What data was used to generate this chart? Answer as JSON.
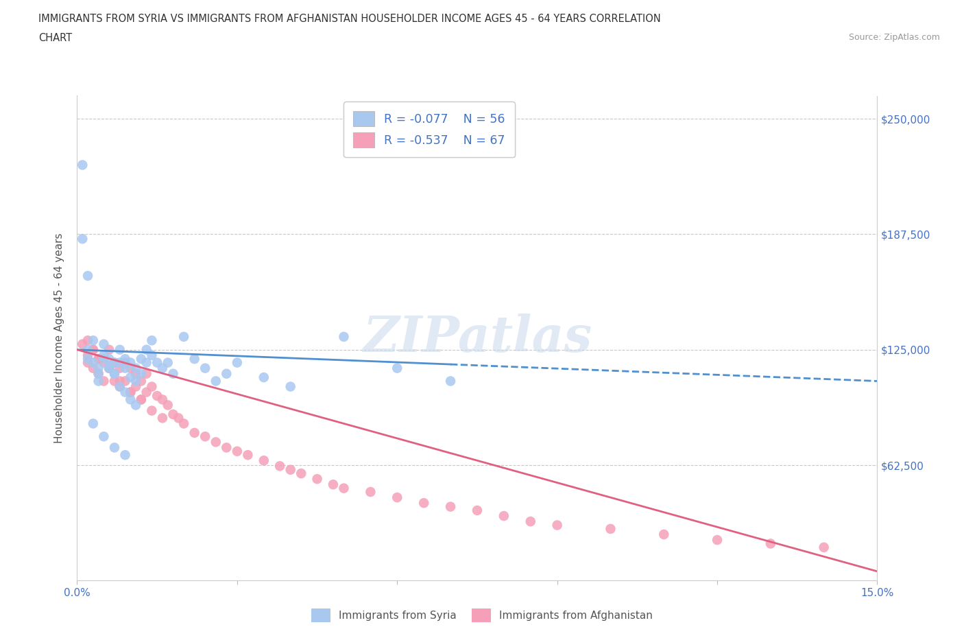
{
  "title_line1": "IMMIGRANTS FROM SYRIA VS IMMIGRANTS FROM AFGHANISTAN HOUSEHOLDER INCOME AGES 45 - 64 YEARS CORRELATION",
  "title_line2": "CHART",
  "source_text": "Source: ZipAtlas.com",
  "ylabel": "Householder Income Ages 45 - 64 years",
  "xlim": [
    0.0,
    0.15
  ],
  "ylim": [
    0,
    262500
  ],
  "yticks": [
    0,
    62500,
    125000,
    187500,
    250000
  ],
  "ytick_labels": [
    "",
    "$62,500",
    "$125,000",
    "$187,500",
    "$250,000"
  ],
  "xticks": [
    0.0,
    0.03,
    0.06,
    0.09,
    0.12,
    0.15
  ],
  "xtick_labels": [
    "0.0%",
    "",
    "",
    "",
    "",
    "15.0%"
  ],
  "grid_color": "#c8c8c8",
  "background_color": "#ffffff",
  "syria_color": "#a8c8f0",
  "afghanistan_color": "#f5a0b8",
  "syria_line_color": "#5090d0",
  "afghanistan_line_color": "#e06080",
  "legend_r_syria": "R = -0.077",
  "legend_n_syria": "N = 56",
  "legend_r_afghanistan": "R = -0.537",
  "legend_n_afghanistan": "N = 67",
  "legend_label_syria": "Immigrants from Syria",
  "legend_label_afghanistan": "Immigrants from Afghanistan",
  "watermark": "ZIPatlas",
  "title_color": "#333333",
  "tick_label_color": "#4472c4",
  "legend_r_color": "#4472c4",
  "axis_label_color": "#555555",
  "syria_x": [
    0.002,
    0.002,
    0.003,
    0.004,
    0.004,
    0.005,
    0.005,
    0.006,
    0.006,
    0.007,
    0.007,
    0.008,
    0.008,
    0.009,
    0.009,
    0.01,
    0.01,
    0.011,
    0.011,
    0.012,
    0.012,
    0.013,
    0.013,
    0.014,
    0.014,
    0.015,
    0.016,
    0.017,
    0.018,
    0.02,
    0.022,
    0.024,
    0.026,
    0.028,
    0.03,
    0.035,
    0.04,
    0.05,
    0.06,
    0.07,
    0.001,
    0.001,
    0.002,
    0.003,
    0.004,
    0.005,
    0.006,
    0.007,
    0.008,
    0.009,
    0.01,
    0.011,
    0.003,
    0.005,
    0.007,
    0.009
  ],
  "syria_y": [
    125000,
    120000,
    118000,
    115000,
    112000,
    128000,
    122000,
    120000,
    116000,
    118000,
    112000,
    125000,
    118000,
    120000,
    115000,
    110000,
    118000,
    115000,
    108000,
    120000,
    112000,
    125000,
    118000,
    130000,
    122000,
    118000,
    115000,
    118000,
    112000,
    132000,
    120000,
    115000,
    108000,
    112000,
    118000,
    110000,
    105000,
    132000,
    115000,
    108000,
    225000,
    185000,
    165000,
    130000,
    108000,
    120000,
    115000,
    112000,
    105000,
    102000,
    98000,
    95000,
    85000,
    78000,
    72000,
    68000
  ],
  "afghanistan_x": [
    0.001,
    0.002,
    0.002,
    0.003,
    0.003,
    0.004,
    0.004,
    0.005,
    0.005,
    0.006,
    0.006,
    0.007,
    0.007,
    0.008,
    0.008,
    0.009,
    0.009,
    0.01,
    0.01,
    0.011,
    0.011,
    0.012,
    0.012,
    0.013,
    0.013,
    0.014,
    0.015,
    0.016,
    0.017,
    0.018,
    0.019,
    0.02,
    0.022,
    0.024,
    0.026,
    0.028,
    0.03,
    0.032,
    0.035,
    0.038,
    0.04,
    0.042,
    0.045,
    0.048,
    0.05,
    0.055,
    0.06,
    0.065,
    0.07,
    0.075,
    0.08,
    0.085,
    0.09,
    0.1,
    0.11,
    0.12,
    0.13,
    0.14,
    0.002,
    0.003,
    0.004,
    0.006,
    0.008,
    0.01,
    0.012,
    0.014,
    0.016
  ],
  "afghanistan_y": [
    128000,
    122000,
    118000,
    125000,
    115000,
    120000,
    112000,
    118000,
    108000,
    125000,
    115000,
    118000,
    108000,
    115000,
    105000,
    118000,
    108000,
    115000,
    102000,
    112000,
    105000,
    108000,
    98000,
    112000,
    102000,
    105000,
    100000,
    98000,
    95000,
    90000,
    88000,
    85000,
    80000,
    78000,
    75000,
    72000,
    70000,
    68000,
    65000,
    62000,
    60000,
    58000,
    55000,
    52000,
    50000,
    48000,
    45000,
    42000,
    40000,
    38000,
    35000,
    32000,
    30000,
    28000,
    25000,
    22000,
    20000,
    18000,
    130000,
    125000,
    120000,
    115000,
    108000,
    102000,
    98000,
    92000,
    88000
  ]
}
